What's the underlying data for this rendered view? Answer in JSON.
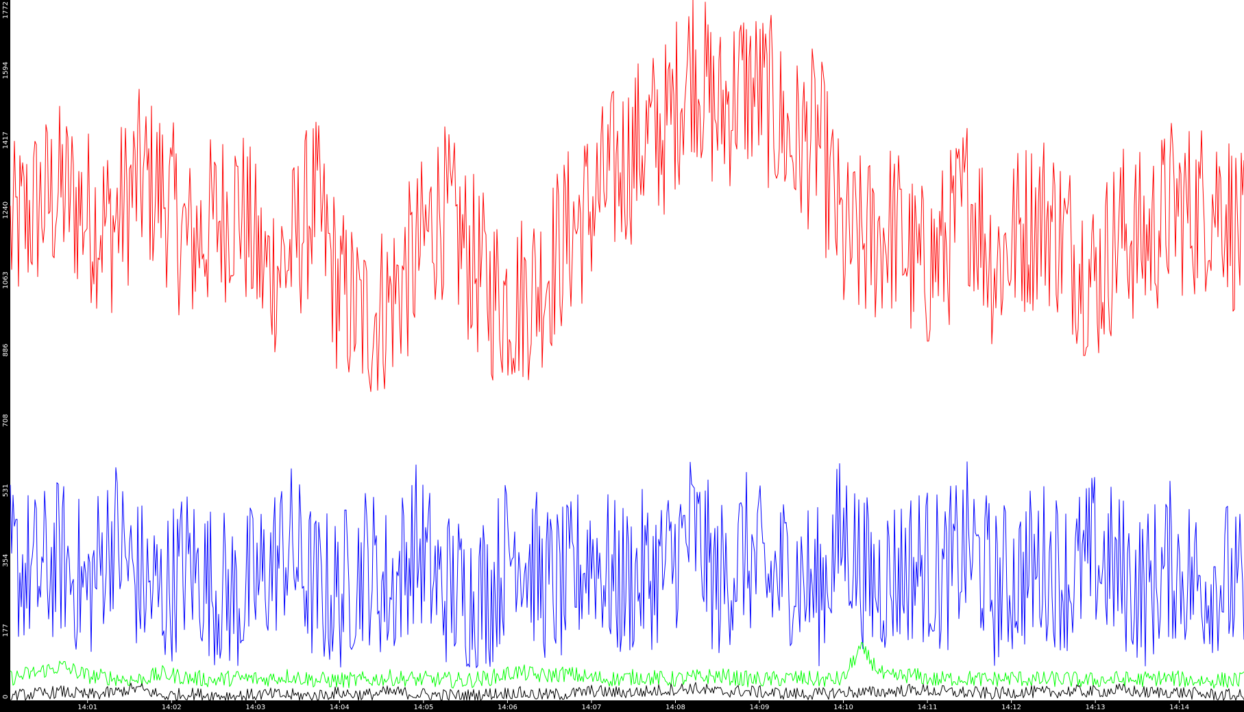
{
  "chart_data": {
    "type": "line",
    "title": "",
    "xlabel": "",
    "ylabel": "",
    "ylim": [
      0,
      1772
    ],
    "y_ticks": [
      "0",
      "177",
      "354",
      "531",
      "708",
      "886",
      "1063",
      "1240",
      "1417",
      "1594",
      "1772"
    ],
    "x_ticks": [
      {
        "label": "14:01",
        "minute": 1
      },
      {
        "label": "14:02",
        "minute": 2
      },
      {
        "label": "14:03",
        "minute": 3
      },
      {
        "label": "14:04",
        "minute": 4
      },
      {
        "label": "14:05",
        "minute": 5
      },
      {
        "label": "14:06",
        "minute": 6
      },
      {
        "label": "14:07",
        "minute": 7
      },
      {
        "label": "14:08",
        "minute": 8
      },
      {
        "label": "14:09",
        "minute": 9
      },
      {
        "label": "14:10",
        "minute": 10
      },
      {
        "label": "14:11",
        "minute": 11
      },
      {
        "label": "14:12",
        "minute": 12
      },
      {
        "label": "14:13",
        "minute": 13
      },
      {
        "label": "14:14",
        "minute": 14
      }
    ],
    "xlim_minutes": [
      0.08,
      14.77
    ],
    "grid": false,
    "legend": "none",
    "background": "#ffffff",
    "axis_color": "#000000",
    "series": [
      {
        "color": "#ff0000",
        "x": [
          0.1,
          0.4,
          0.7,
          1.0,
          1.3,
          1.6,
          1.9,
          2.2,
          2.5,
          2.8,
          3.1,
          3.4,
          3.7,
          4.0,
          4.3,
          4.6,
          4.9,
          5.2,
          5.5,
          5.8,
          6.1,
          6.4,
          6.7,
          7.0,
          7.3,
          7.6,
          7.9,
          8.2,
          8.5,
          8.8,
          9.1,
          9.4,
          9.7,
          10.0,
          10.3,
          10.6,
          10.9,
          11.2,
          11.5,
          11.8,
          12.1,
          12.4,
          12.7,
          13.0,
          13.3,
          13.6,
          13.9,
          14.2,
          14.5,
          14.75
        ],
        "y": [
          1180,
          1250,
          1290,
          1230,
          1200,
          1320,
          1290,
          1150,
          1210,
          1260,
          1080,
          1120,
          1270,
          1030,
          960,
          1010,
          1110,
          1250,
          1140,
          1030,
          1010,
          1060,
          1170,
          1250,
          1340,
          1410,
          1450,
          1620,
          1480,
          1560,
          1520,
          1400,
          1430,
          1150,
          1160,
          1200,
          1080,
          1140,
          1280,
          1100,
          1190,
          1230,
          1150,
          1060,
          1190,
          1160,
          1250,
          1240,
          1280,
          1150
        ]
      },
      {
        "color": "#0000ff",
        "x": [
          0.1,
          0.4,
          0.7,
          1.0,
          1.3,
          1.6,
          1.9,
          2.2,
          2.5,
          2.8,
          3.1,
          3.4,
          3.7,
          4.0,
          4.3,
          4.6,
          4.9,
          5.2,
          5.5,
          5.8,
          6.1,
          6.4,
          6.7,
          7.0,
          7.3,
          7.6,
          7.9,
          8.2,
          8.5,
          8.8,
          9.1,
          9.4,
          9.7,
          10.0,
          10.3,
          10.6,
          10.9,
          11.2,
          11.5,
          11.8,
          12.1,
          12.4,
          12.7,
          13.0,
          13.3,
          13.6,
          13.9,
          14.2,
          14.5,
          14.75
        ],
        "y": [
          330,
          300,
          340,
          260,
          410,
          290,
          250,
          330,
          270,
          240,
          300,
          380,
          260,
          250,
          330,
          260,
          380,
          270,
          250,
          260,
          400,
          280,
          260,
          370,
          270,
          300,
          320,
          420,
          270,
          360,
          290,
          320,
          260,
          410,
          280,
          300,
          330,
          290,
          380,
          260,
          300,
          330,
          290,
          350,
          300,
          260,
          330,
          290,
          300,
          240
        ]
      },
      {
        "color": "#00ff00",
        "x": [
          0.1,
          0.4,
          0.7,
          1.0,
          1.3,
          1.6,
          1.9,
          2.2,
          2.5,
          2.8,
          3.1,
          3.4,
          3.7,
          4.0,
          4.3,
          4.6,
          4.9,
          5.2,
          5.5,
          5.8,
          6.1,
          6.4,
          6.7,
          7.0,
          7.3,
          7.6,
          7.9,
          8.2,
          8.5,
          8.8,
          9.1,
          9.4,
          9.7,
          10.0,
          10.2,
          10.5,
          10.8,
          11.1,
          11.4,
          11.7,
          12.0,
          12.3,
          12.6,
          12.9,
          13.2,
          13.5,
          13.8,
          14.1,
          14.4,
          14.75
        ],
        "y": [
          55,
          70,
          85,
          60,
          55,
          50,
          65,
          55,
          50,
          55,
          52,
          60,
          50,
          48,
          50,
          55,
          52,
          50,
          48,
          55,
          70,
          60,
          65,
          55,
          52,
          58,
          50,
          55,
          60,
          52,
          50,
          55,
          50,
          52,
          130,
          55,
          62,
          50,
          55,
          50,
          55,
          50,
          52,
          48,
          52,
          50,
          55,
          50,
          48,
          50
        ]
      },
      {
        "color": "#000000",
        "x": [
          0.1,
          0.4,
          0.7,
          1.0,
          1.3,
          1.6,
          1.9,
          2.2,
          2.5,
          2.8,
          3.1,
          3.4,
          3.7,
          4.0,
          4.3,
          4.6,
          4.9,
          5.2,
          5.5,
          5.8,
          6.1,
          6.4,
          6.7,
          7.0,
          7.3,
          7.6,
          7.9,
          8.2,
          8.5,
          8.8,
          9.1,
          9.4,
          9.7,
          10.0,
          10.3,
          10.6,
          10.9,
          11.2,
          11.5,
          11.8,
          12.1,
          12.4,
          12.7,
          13.0,
          13.3,
          13.6,
          13.9,
          14.2,
          14.5,
          14.75
        ],
        "y": [
          10,
          15,
          20,
          12,
          18,
          30,
          10,
          15,
          12,
          10,
          14,
          12,
          10,
          18,
          12,
          20,
          15,
          12,
          10,
          15,
          18,
          12,
          14,
          22,
          18,
          20,
          25,
          30,
          20,
          22,
          18,
          15,
          14,
          20,
          18,
          22,
          25,
          20,
          18,
          15,
          20,
          18,
          22,
          20,
          25,
          18,
          20,
          15,
          12,
          10
        ]
      }
    ]
  }
}
